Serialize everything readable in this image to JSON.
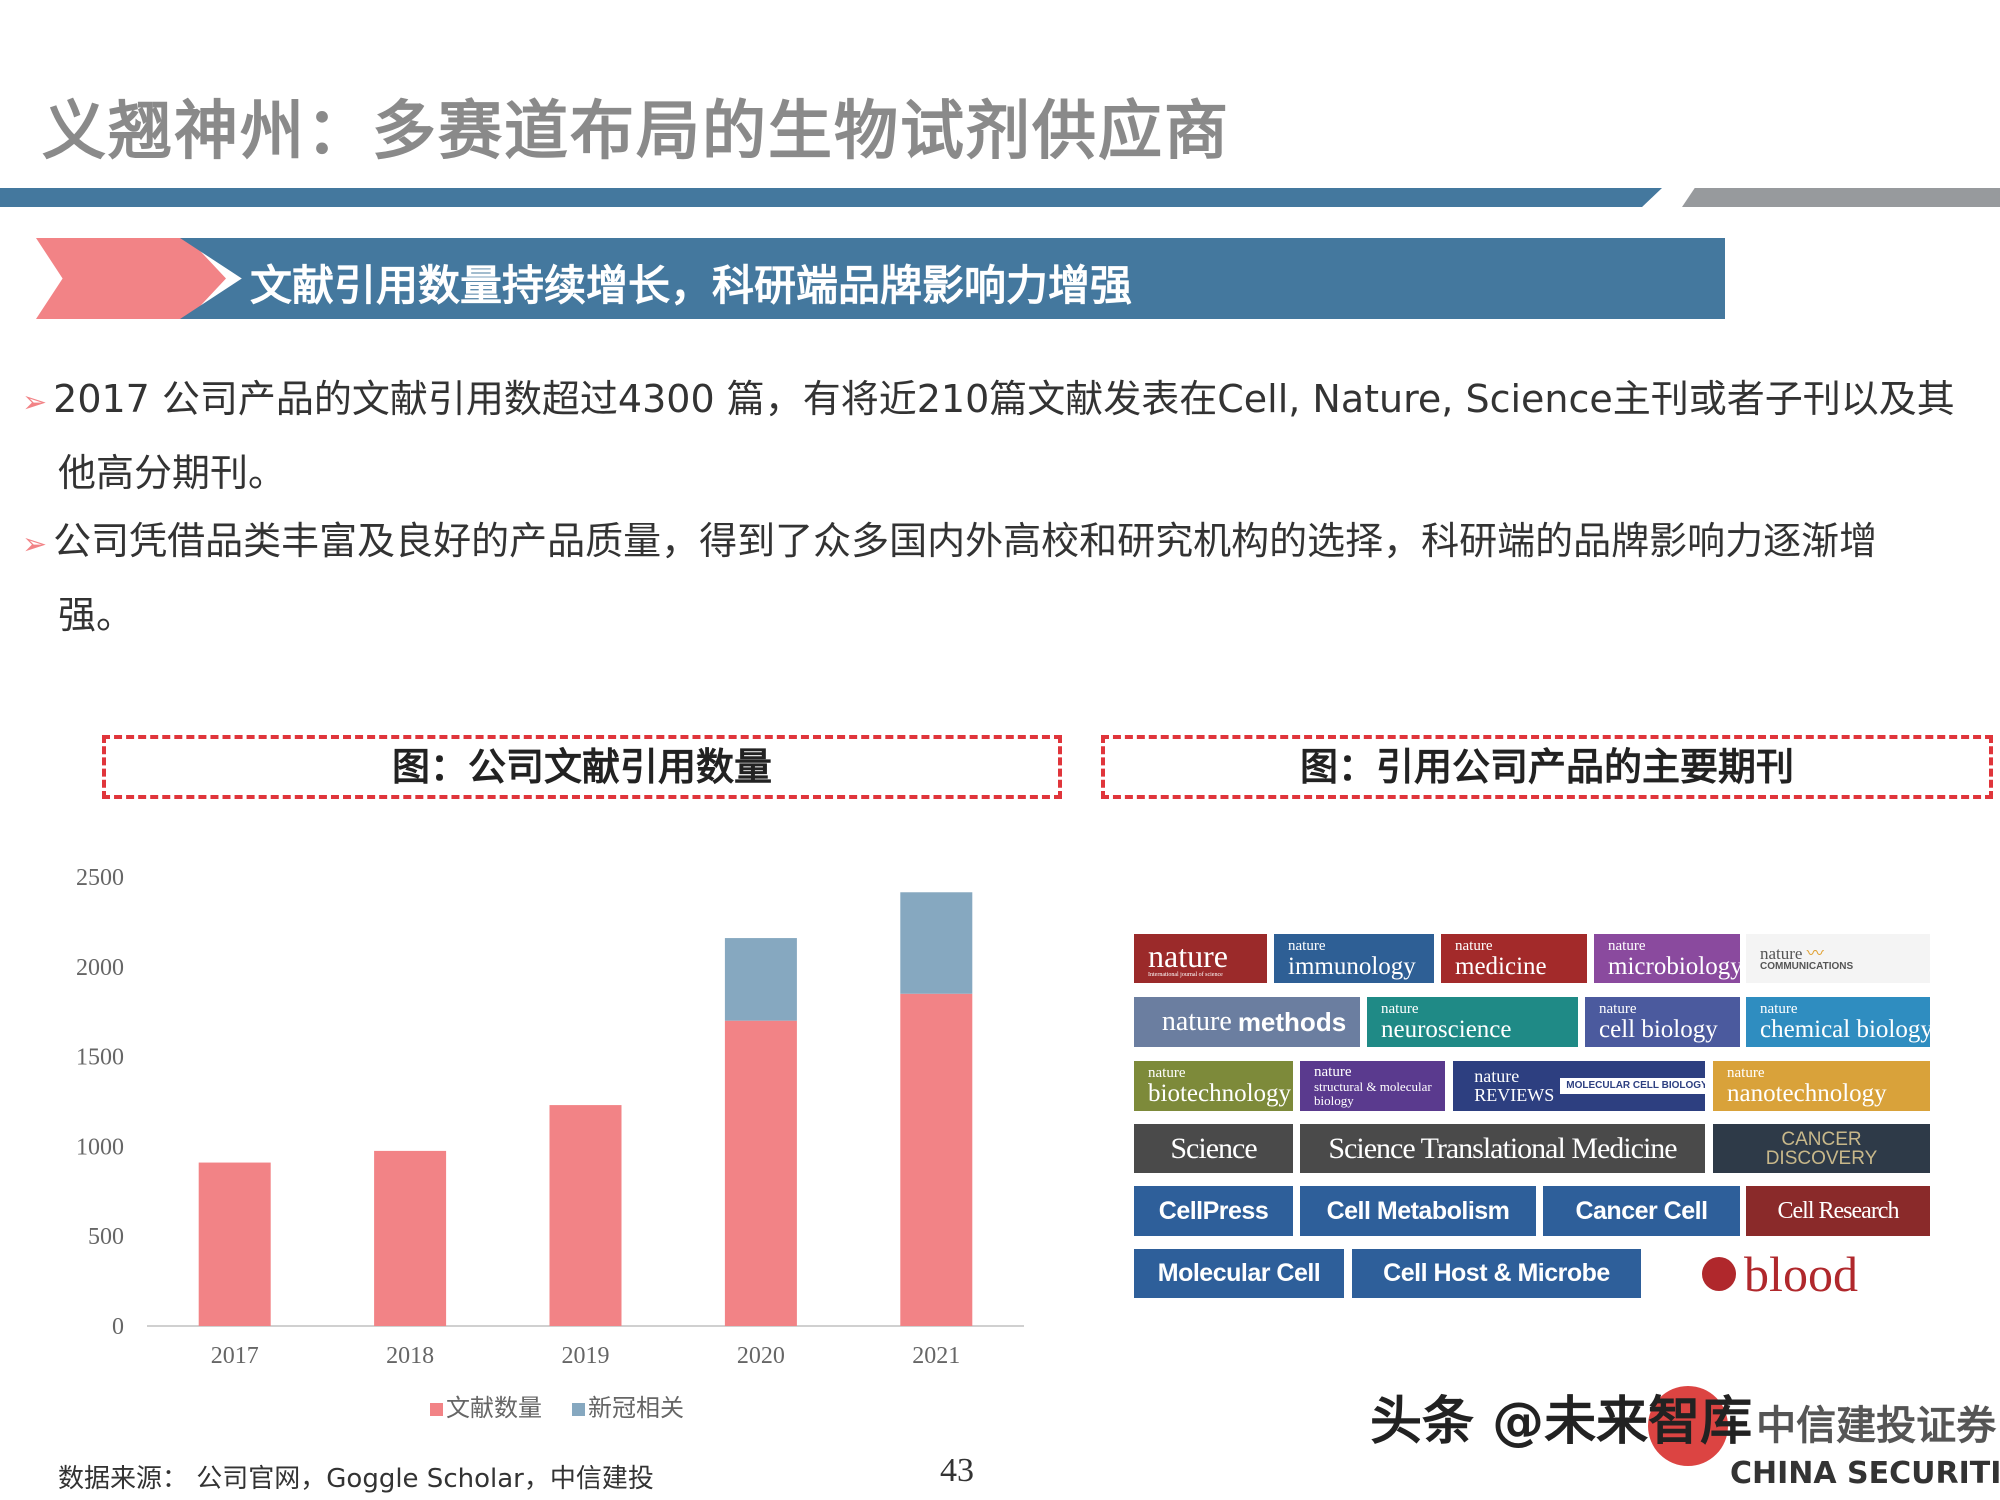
{
  "header": {
    "title": "义翘神州：多赛道布局的生物试剂供应商"
  },
  "banner": {
    "text": "文献引用数量持续增长，科研端品牌影响力增强"
  },
  "bullets": [
    {
      "mark": "➢",
      "line1": "2017 公司产品的文献引用数超过4300 篇，有将近210篇文献发表在Cell, Nature, Science主刊或者子刊以及其",
      "line2": "他高分期刊。"
    },
    {
      "mark": "➢",
      "line1": "公司凭借品类丰富及良好的产品质量，得到了众多国内外高校和研究机构的选择，科研端的品牌影响力逐渐增",
      "line2": "强。"
    }
  ],
  "figures": {
    "left_title": "图：公司文献引用数量",
    "right_title": "图：引用公司产品的主要期刊"
  },
  "chart_data": {
    "type": "bar",
    "stacked": true,
    "categories": [
      "2017",
      "2018",
      "2019",
      "2020",
      "2021"
    ],
    "series": [
      {
        "name": "文献数量",
        "color": "#f28386",
        "values": [
          910,
          975,
          1230,
          1700,
          1850
        ]
      },
      {
        "name": "新冠相关",
        "color": "#86a8c0",
        "values": [
          0,
          0,
          0,
          460,
          565
        ]
      }
    ],
    "yticks": [
      "0",
      "500",
      "1000",
      "1500",
      "2000",
      "2500"
    ],
    "ylim": [
      0,
      2500
    ],
    "legend": "bottom",
    "grid": false
  },
  "journals": [
    {
      "a": "nature",
      "b": "International journal of science"
    },
    {
      "a": "nature",
      "b": "immunology"
    },
    {
      "a": "nature",
      "b": "medicine"
    },
    {
      "a": "nature",
      "b": "microbiology"
    },
    {
      "a": "nature",
      "b": "COMMUNICATIONS"
    },
    {
      "a": "nature",
      "b": "methods"
    },
    {
      "a": "nature",
      "b": "neuroscience"
    },
    {
      "a": "nature",
      "b": "cell biology"
    },
    {
      "a": "nature",
      "b": "chemical biology"
    },
    {
      "a": "nature",
      "b": "biotechnology"
    },
    {
      "a": "nature",
      "b": "structural & molecular biology"
    },
    {
      "a": "nature REVIEWS",
      "b": "MOLECULAR CELL BIOLOGY"
    },
    {
      "a": "nature",
      "b": "nanotechnology"
    },
    {
      "a": "Science"
    },
    {
      "a": "Science Translational Medicine"
    },
    {
      "a": "CANCER",
      "b": "DISCOVERY"
    },
    {
      "a": "CellPress"
    },
    {
      "a": "Cell Metabolism"
    },
    {
      "a": "Cancer Cell"
    },
    {
      "a": "Cell Research"
    },
    {
      "a": "Molecular Cell"
    },
    {
      "a": "Cell Host & Microbe"
    },
    {
      "a": "blood"
    }
  ],
  "footer": {
    "source": "数据来源： 公司官网，Goggle Scholar，中信建投",
    "page": "43",
    "watermark": "头条 @未来智库",
    "brand": "中信建投证券",
    "brand_en": "CHINA SECURITIES"
  }
}
